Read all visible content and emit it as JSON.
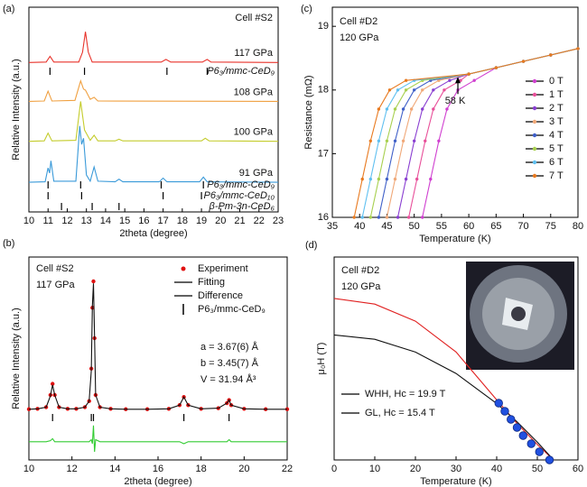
{
  "chart_data": [
    {
      "type": "line",
      "panel_label": "(a)",
      "xlabel": "2theta (degree)",
      "ylabel": "Relative Intensity (a.u.)",
      "annotations": [
        "Cell #S2"
      ],
      "xlim": [
        10,
        23
      ],
      "xticks": [
        10,
        11,
        12,
        13,
        14,
        15,
        16,
        17,
        18,
        19,
        20,
        21,
        22,
        23
      ],
      "ylim": [
        0,
        10
      ],
      "series": [
        {
          "name": "117 GPa",
          "color": "#e8322a",
          "style": "line",
          "x": [
            10,
            10.9,
            11.1,
            11.3,
            12.6,
            12.8,
            12.95,
            13.1,
            13.3,
            16.9,
            17.15,
            17.4,
            19.05,
            19.3,
            19.5,
            23
          ],
          "values": [
            7.3,
            7.32,
            7.6,
            7.32,
            7.32,
            7.8,
            8.8,
            7.8,
            7.32,
            7.32,
            7.45,
            7.32,
            7.32,
            7.45,
            7.32,
            7.3
          ]
        },
        {
          "name": "108 GPa",
          "color": "#f0a040",
          "style": "line",
          "x": [
            10,
            10.8,
            11.0,
            11.2,
            12.4,
            12.7,
            12.85,
            12.95,
            13.2,
            13.4,
            13.6,
            23
          ],
          "values": [
            5.4,
            5.42,
            5.9,
            5.42,
            5.45,
            6.4,
            6.0,
            5.95,
            5.5,
            5.6,
            5.42,
            5.4
          ]
        },
        {
          "name": "100 GPa",
          "color": "#c4cc2c",
          "style": "line",
          "x": [
            10,
            10.8,
            11.0,
            11.2,
            12.45,
            12.7,
            12.9,
            13.2,
            13.4,
            13.6,
            14.5,
            14.7,
            14.9,
            19.0,
            19.2,
            19.4,
            23
          ],
          "values": [
            3.45,
            3.47,
            3.85,
            3.47,
            3.5,
            5.4,
            4.0,
            3.5,
            3.75,
            3.47,
            3.47,
            3.55,
            3.47,
            3.47,
            3.6,
            3.47,
            3.45
          ]
        },
        {
          "name": "91 GPa",
          "color": "#3a9ad9",
          "style": "line",
          "x": [
            10,
            10.85,
            11.0,
            11.08,
            11.15,
            11.3,
            12.45,
            12.65,
            12.75,
            12.85,
            13.0,
            13.2,
            13.4,
            13.6,
            14.5,
            14.7,
            14.9,
            16.8,
            17.0,
            17.2,
            18.9,
            19.1,
            19.3,
            23
          ],
          "values": [
            1.45,
            1.47,
            2.15,
            1.9,
            2.5,
            1.5,
            1.5,
            4.2,
            3.3,
            3.6,
            1.8,
            1.5,
            2.2,
            1.5,
            1.47,
            1.6,
            1.47,
            1.47,
            1.65,
            1.47,
            1.47,
            1.7,
            1.47,
            1.45
          ]
        }
      ],
      "reflections": [
        {
          "name": "P6₃/mmc-CeD₉",
          "color": "#e8322a",
          "positions": [
            11.1,
            12.9,
            17.2,
            19.3
          ]
        },
        {
          "name": "P6₃/mmc-CeD₉",
          "color": "#e8322a",
          "positions": [
            11.0,
            12.7,
            16.9,
            19.1
          ]
        },
        {
          "name": "P6₃/mmc-CeD₁₀",
          "color": "#3a9ad9",
          "positions": [
            11.0,
            12.75,
            17.0,
            19.0
          ]
        },
        {
          "name": "β-Pm-3n-CeD₆",
          "color": "#f0a040",
          "positions": [
            11.7,
            13.3,
            14.7
          ]
        }
      ]
    },
    {
      "type": "line",
      "panel_label": "(b)",
      "xlabel": "2theta (degree)",
      "ylabel": "Relative Intensity (a.u.)",
      "annotations": [
        "Cell #S2",
        "117 GPa",
        "a = 3.67(6) Å",
        "b = 3.45(7) Å",
        "V = 31.94 Å³"
      ],
      "xlim": [
        10,
        22
      ],
      "xticks": [
        10,
        12,
        14,
        16,
        18,
        20,
        22
      ],
      "ylim": [
        0,
        10
      ],
      "legend": "upper right",
      "series": [
        {
          "name": "Experiment",
          "color": "#e01010",
          "style": "markers",
          "x": [
            10,
            10.4,
            10.8,
            11.0,
            11.1,
            11.2,
            11.4,
            11.8,
            12.2,
            12.6,
            12.8,
            12.9,
            12.95,
            13.0,
            13.05,
            13.1,
            13.3,
            13.8,
            14.5,
            15.5,
            16.5,
            17.0,
            17.2,
            17.4,
            18.0,
            18.8,
            19.2,
            19.3,
            19.4,
            20.0,
            21.0,
            22.0
          ],
          "values": [
            2.5,
            2.52,
            2.6,
            3.2,
            3.75,
            3.2,
            2.6,
            2.52,
            2.52,
            2.6,
            2.9,
            4.5,
            7.5,
            8.8,
            6.0,
            3.2,
            2.6,
            2.52,
            2.5,
            2.5,
            2.52,
            2.7,
            3.1,
            2.7,
            2.52,
            2.55,
            2.8,
            2.95,
            2.7,
            2.52,
            2.5,
            2.5
          ]
        },
        {
          "name": "Fitting",
          "color": "#111111",
          "style": "line",
          "x": [
            10,
            10.4,
            10.8,
            11.0,
            11.1,
            11.2,
            11.4,
            11.8,
            12.2,
            12.6,
            12.8,
            12.9,
            12.95,
            13.0,
            13.05,
            13.1,
            13.3,
            13.8,
            14.5,
            15.5,
            16.5,
            17.0,
            17.2,
            17.4,
            18.0,
            18.8,
            19.2,
            19.3,
            19.4,
            20.0,
            21.0,
            22.0
          ],
          "values": [
            2.5,
            2.52,
            2.6,
            3.15,
            3.7,
            3.2,
            2.6,
            2.52,
            2.52,
            2.6,
            2.9,
            4.4,
            7.6,
            8.7,
            6.1,
            3.2,
            2.6,
            2.52,
            2.5,
            2.5,
            2.52,
            2.7,
            3.1,
            2.7,
            2.52,
            2.55,
            2.8,
            2.95,
            2.7,
            2.52,
            2.5,
            2.5
          ]
        },
        {
          "name": "Difference",
          "color": "#33cc33",
          "style": "line",
          "x": [
            10,
            10.4,
            10.8,
            11.0,
            11.1,
            11.2,
            11.4,
            11.8,
            12.2,
            12.6,
            12.8,
            12.9,
            12.95,
            13.0,
            13.05,
            13.1,
            13.3,
            13.8,
            14.5,
            15.5,
            16.5,
            17.0,
            17.2,
            17.4,
            18.0,
            18.8,
            19.2,
            19.3,
            19.4,
            20.0,
            21.0,
            22.0
          ],
          "values": [
            0.9,
            0.9,
            0.9,
            0.95,
            1.05,
            0.9,
            0.9,
            0.9,
            0.9,
            0.9,
            0.9,
            1.0,
            0.8,
            1.7,
            0.4,
            1.0,
            0.9,
            0.9,
            0.9,
            0.9,
            0.9,
            0.9,
            0.8,
            0.9,
            0.9,
            0.9,
            0.9,
            1.0,
            0.9,
            0.9,
            0.9,
            0.9
          ]
        }
      ],
      "reflections": [
        {
          "name": "P6₃/mmc-CeD₉",
          "color": "#e01010",
          "positions": [
            11.1,
            12.9,
            13.0,
            17.2,
            19.3
          ]
        }
      ]
    },
    {
      "type": "line",
      "panel_label": "(c)",
      "xlabel": "Temperature (K)",
      "ylabel": "Resistance (mΩ)",
      "annotations": [
        "Cell #D2",
        "120 GPa"
      ],
      "arrow": {
        "text": "58 K",
        "x": 58,
        "y": 18.22
      },
      "xlim": [
        35,
        80
      ],
      "xticks": [
        35,
        40,
        45,
        50,
        55,
        60,
        65,
        70,
        75,
        80
      ],
      "ylim": [
        16,
        19.3
      ],
      "yticks": [
        16,
        17,
        18,
        19
      ],
      "legend": "right",
      "series": [
        {
          "name": "0 T",
          "color": "#d040d0",
          "style": "line+markers",
          "x": [
            51.5,
            53,
            54.5,
            56,
            58,
            61,
            65,
            70,
            75,
            80
          ],
          "values": [
            16.0,
            16.6,
            17.2,
            17.7,
            18.0,
            18.15,
            18.35,
            18.45,
            18.55,
            18.65
          ]
        },
        {
          "name": "1 T",
          "color": "#e8509a",
          "style": "line+markers",
          "x": [
            49,
            50.5,
            52,
            53.5,
            55.5,
            58.5,
            60,
            65,
            70,
            75,
            80
          ],
          "values": [
            16.0,
            16.6,
            17.2,
            17.7,
            18.0,
            18.15,
            18.25,
            18.35,
            18.45,
            18.55,
            18.65
          ]
        },
        {
          "name": "2 T",
          "color": "#8a3fd1",
          "style": "line+markers",
          "x": [
            47,
            48.5,
            50,
            51.5,
            53.5,
            56.5,
            60,
            65,
            70,
            75,
            80
          ],
          "values": [
            16.0,
            16.6,
            17.2,
            17.7,
            18.0,
            18.15,
            18.25,
            18.35,
            18.45,
            18.55,
            18.65
          ]
        },
        {
          "name": "3 T",
          "color": "#f0a878",
          "style": "line+markers",
          "x": [
            45,
            46.5,
            48,
            49.5,
            51.5,
            54.5,
            60,
            65,
            70,
            75,
            80
          ],
          "values": [
            16.0,
            16.6,
            17.2,
            17.7,
            18.0,
            18.15,
            18.25,
            18.35,
            18.45,
            18.55,
            18.65
          ]
        },
        {
          "name": "4 T",
          "color": "#4060c8",
          "style": "line+markers",
          "x": [
            43.5,
            45,
            46.5,
            48,
            50,
            53,
            60,
            65,
            70,
            75,
            80
          ],
          "values": [
            16.0,
            16.6,
            17.2,
            17.7,
            18.0,
            18.15,
            18.25,
            18.35,
            18.45,
            18.55,
            18.65
          ]
        },
        {
          "name": "5 T",
          "color": "#a8d050",
          "style": "line+markers",
          "x": [
            42,
            43.5,
            45,
            46.5,
            48.5,
            51.5,
            60,
            65,
            70,
            75,
            80
          ],
          "values": [
            16.0,
            16.6,
            17.2,
            17.7,
            18.0,
            18.15,
            18.25,
            18.35,
            18.45,
            18.55,
            18.65
          ]
        },
        {
          "name": "6 T",
          "color": "#60c0f0",
          "style": "line+markers",
          "x": [
            40.5,
            42,
            43.5,
            45,
            47,
            50,
            60,
            65,
            70,
            75,
            80
          ],
          "values": [
            16.0,
            16.6,
            17.2,
            17.7,
            18.0,
            18.15,
            18.25,
            18.35,
            18.45,
            18.55,
            18.65
          ]
        },
        {
          "name": "7 T",
          "color": "#e87a20",
          "style": "line+markers",
          "x": [
            39,
            40.5,
            42,
            43.5,
            45.5,
            48.5,
            60,
            65,
            70,
            75,
            80
          ],
          "values": [
            16.0,
            16.6,
            17.2,
            17.7,
            18.0,
            18.15,
            18.25,
            18.35,
            18.45,
            18.55,
            18.65
          ]
        }
      ]
    },
    {
      "type": "line",
      "panel_label": "(d)",
      "xlabel": "Temperature (K)",
      "ylabel": "μ₀H (T)",
      "annotations": [
        "Cell #D2",
        "120 GPa"
      ],
      "xlim": [
        0,
        60
      ],
      "xticks": [
        0,
        10,
        20,
        30,
        40,
        50,
        60
      ],
      "ylim": [
        0,
        25
      ],
      "legend": "lower left",
      "series": [
        {
          "name": "WHH, Hc = 19.9 T",
          "color": "#e02020",
          "style": "line",
          "x": [
            0,
            10,
            20,
            30,
            40,
            45,
            50,
            54
          ],
          "values": [
            19.9,
            19.2,
            17.1,
            13.3,
            7.4,
            4.5,
            1.9,
            0
          ]
        },
        {
          "name": "GL, Hc = 15.4 T",
          "color": "#111111",
          "style": "line",
          "x": [
            0,
            10,
            20,
            30,
            40,
            45,
            50,
            54
          ],
          "values": [
            15.4,
            14.87,
            13.29,
            10.65,
            6.95,
            4.7,
            2.2,
            0
          ]
        }
      ],
      "points": {
        "color": "#2050e0",
        "x": [
          40.5,
          42,
          43.5,
          45,
          46.5,
          48.5,
          50.5,
          53
        ],
        "values": [
          7,
          6,
          5,
          4,
          3,
          2,
          1,
          0
        ]
      }
    }
  ]
}
